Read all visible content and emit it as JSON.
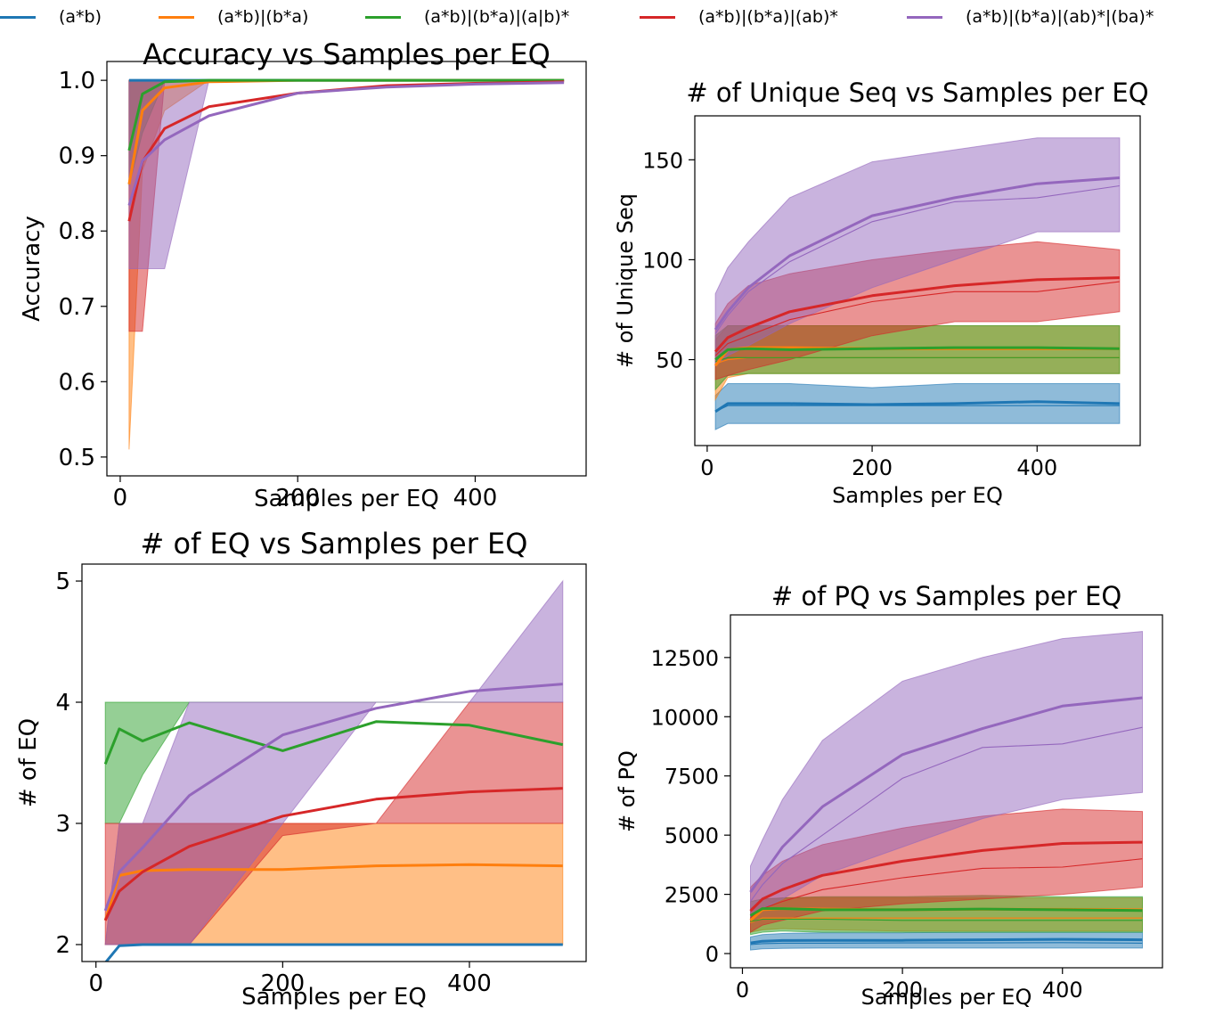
{
  "legend": [
    {
      "label": "(a*b)",
      "color": "#1f77b4"
    },
    {
      "label": "(a*b)|(b*a)",
      "color": "#ff7f0e"
    },
    {
      "label": "(a*b)|(b*a)|(a|b)*",
      "color": "#2ca02c"
    },
    {
      "label": "(a*b)|(b*a)|(ab)*",
      "color": "#d62728"
    },
    {
      "label": "(a*b)|(b*a)|(ab)*|(ba)*",
      "color": "#9467bd"
    }
  ],
  "chart_data": [
    {
      "id": "accuracy",
      "type": "line",
      "title": "Accuracy vs Samples per EQ",
      "xlabel": "Samples per EQ",
      "ylabel": "Accuracy",
      "xlim": [
        -15,
        525
      ],
      "ylim": [
        0.475,
        1.025
      ],
      "xticks": [
        0,
        200,
        400
      ],
      "yticks": [
        0.5,
        0.6,
        0.7,
        0.8,
        0.9,
        1.0
      ],
      "ytick_labels": [
        "0.5",
        "0.6",
        "0.7",
        "0.8",
        "0.9",
        "1.0"
      ],
      "x": [
        10,
        25,
        50,
        100,
        200,
        300,
        400,
        500
      ],
      "series": [
        {
          "name": "(a*b)",
          "mean": [
            1,
            1,
            1,
            1,
            1,
            1,
            1,
            1
          ],
          "lower": [
            1,
            1,
            1,
            1,
            1,
            1,
            1,
            1
          ],
          "upper": [
            1,
            1,
            1,
            1,
            1,
            1,
            1,
            1
          ]
        },
        {
          "name": "(a*b)|(b*a)",
          "mean": [
            0.862,
            0.96,
            0.99,
            0.998,
            1,
            1,
            1,
            1
          ],
          "lower": [
            0.51,
            0.88,
            0.96,
            1,
            1,
            1,
            1,
            1
          ],
          "upper": [
            1,
            1,
            1,
            1,
            1,
            1,
            1,
            1
          ]
        },
        {
          "name": "(a*b)|(b*a)|(a|b)*",
          "mean": [
            0.907,
            0.982,
            0.998,
            1,
            1,
            1,
            1,
            1
          ],
          "lower": [
            0.86,
            0.93,
            1,
            1,
            1,
            1,
            1,
            1
          ],
          "upper": [
            1,
            1,
            1,
            1,
            1,
            1,
            1,
            1
          ]
        },
        {
          "name": "(a*b)|(b*a)|(ab)*",
          "mean": [
            0.813,
            0.892,
            0.936,
            0.965,
            0.983,
            0.993,
            0.996,
            0.998
          ],
          "lower": [
            0.667,
            0.667,
            1,
            1,
            1,
            1,
            1,
            1
          ],
          "upper": [
            1,
            1,
            1,
            1,
            1,
            1,
            1,
            1
          ]
        },
        {
          "name": "(a*b)|(b*a)|(ab)*|(ba)*",
          "mean": [
            0.834,
            0.893,
            0.921,
            0.953,
            0.983,
            0.991,
            0.995,
            0.997
          ],
          "lower": [
            0.75,
            0.75,
            0.75,
            1,
            1,
            1,
            1,
            1
          ],
          "upper": [
            1,
            1,
            1,
            1,
            1,
            1,
            1,
            1
          ]
        }
      ]
    },
    {
      "id": "unique_seq",
      "type": "line",
      "title": "# of Unique Seq vs Samples per EQ",
      "xlabel": "Samples per EQ",
      "ylabel": "# of Unique Seq",
      "xlim": [
        -15,
        525
      ],
      "ylim": [
        7,
        172
      ],
      "xticks": [
        0,
        200,
        400
      ],
      "yticks": [
        50,
        100,
        150
      ],
      "ytick_labels": [
        "50",
        "100",
        "150"
      ],
      "x": [
        10,
        25,
        50,
        100,
        200,
        300,
        400,
        500
      ],
      "series": [
        {
          "name": "(a*b)",
          "mean": [
            24,
            28,
            28,
            28,
            27.5,
            28,
            29,
            28
          ],
          "median": [
            24,
            27,
            27,
            27,
            27,
            27,
            27,
            27
          ],
          "lower": [
            15,
            18,
            18,
            18,
            18,
            18,
            18,
            18
          ],
          "upper": [
            32,
            38,
            38,
            38,
            36,
            38,
            38,
            38
          ]
        },
        {
          "name": "(a*b)|(b*a)",
          "mean": [
            47,
            55,
            56,
            56,
            55.5,
            55.5,
            55.5,
            55.5
          ],
          "median": [
            48,
            50,
            51,
            51,
            51,
            51,
            51,
            51
          ],
          "lower": [
            30,
            41,
            43,
            43,
            43,
            43,
            43,
            43
          ],
          "upper": [
            60,
            67,
            67,
            67,
            67,
            67,
            67,
            67
          ]
        },
        {
          "name": "(a*b)|(b*a)|(a|b)*",
          "mean": [
            50,
            55,
            55.5,
            55,
            55.5,
            56,
            56,
            55.5
          ],
          "median": [
            49,
            51,
            51,
            51,
            51,
            51,
            51,
            51
          ],
          "lower": [
            35,
            42,
            43,
            43,
            43,
            43,
            43,
            43
          ],
          "upper": [
            62,
            67,
            67,
            67,
            67,
            67,
            67,
            67
          ]
        },
        {
          "name": "(a*b)|(b*a)|(ab)*",
          "mean": [
            54,
            61,
            66,
            74,
            82,
            87,
            90,
            91
          ],
          "median": [
            52,
            58,
            62,
            70,
            79,
            84,
            84,
            89
          ],
          "lower": [
            40,
            42,
            45,
            50,
            62,
            69,
            69,
            74
          ],
          "upper": [
            68,
            78,
            87,
            93,
            100,
            105,
            109,
            105
          ]
        },
        {
          "name": "(a*b)|(b*a)|(ab)*|(ba)*",
          "mean": [
            65,
            74,
            86,
            102,
            122,
            131,
            138,
            141
          ],
          "median": [
            63,
            72,
            84,
            99,
            119,
            129,
            131,
            137
          ],
          "lower": [
            47,
            52,
            57,
            68,
            86,
            100,
            114,
            114
          ],
          "upper": [
            83,
            96,
            109,
            131,
            149,
            155,
            161,
            161
          ]
        }
      ]
    },
    {
      "id": "eq",
      "type": "line",
      "title": "# of EQ vs Samples per EQ",
      "xlabel": "Samples per EQ",
      "ylabel": "# of EQ",
      "xlim": [
        -15,
        525
      ],
      "ylim": [
        1.86,
        5.14
      ],
      "xticks": [
        0,
        200,
        400
      ],
      "yticks": [
        2,
        3,
        4,
        5
      ],
      "ytick_labels": [
        "2",
        "3",
        "4",
        "5"
      ],
      "x": [
        10,
        25,
        50,
        100,
        200,
        300,
        400,
        500
      ],
      "series": [
        {
          "name": "(a*b)",
          "mean": [
            1.85,
            1.99,
            2,
            2,
            2,
            2,
            2,
            2
          ],
          "lower": [
            2,
            2,
            2,
            2,
            2,
            2,
            2,
            2
          ],
          "upper": [
            2,
            2,
            2,
            2,
            2,
            2,
            2,
            2
          ]
        },
        {
          "name": "(a*b)|(b*a)",
          "mean": [
            2.2,
            2.57,
            2.61,
            2.62,
            2.62,
            2.65,
            2.66,
            2.65
          ],
          "lower": [
            2,
            2,
            2,
            2,
            2,
            2,
            2,
            2
          ],
          "upper": [
            2,
            3,
            3,
            3,
            3,
            3,
            3,
            3
          ]
        },
        {
          "name": "(a*b)|(b*a)|(a|b)*",
          "mean": [
            3.49,
            3.78,
            3.68,
            3.83,
            3.6,
            3.84,
            3.81,
            3.65
          ],
          "lower": [
            3,
            3,
            3.4,
            4,
            4,
            4,
            4,
            4
          ],
          "upper": [
            4,
            4,
            4,
            4,
            4,
            4,
            4,
            4
          ]
        },
        {
          "name": "(a*b)|(b*a)|(ab)*",
          "mean": [
            2.2,
            2.44,
            2.6,
            2.81,
            3.06,
            3.2,
            3.26,
            3.29
          ],
          "lower": [
            2,
            2,
            2,
            2,
            2.9,
            3,
            3,
            3
          ],
          "upper": [
            3,
            3,
            3,
            3,
            3,
            3,
            4,
            4
          ]
        },
        {
          "name": "(a*b)|(b*a)|(ab)*|(ba)*",
          "mean": [
            2.28,
            2.6,
            2.8,
            3.23,
            3.73,
            3.95,
            4.09,
            4.15
          ],
          "lower": [
            2,
            2,
            2,
            2,
            3,
            4,
            4,
            4
          ],
          "upper": [
            2,
            3,
            3,
            4,
            4,
            4,
            4,
            5
          ]
        }
      ]
    },
    {
      "id": "pq",
      "type": "line",
      "title": "# of PQ vs Samples per EQ",
      "xlabel": "Samples per EQ",
      "ylabel": "# of PQ",
      "xlim": [
        -15,
        525
      ],
      "ylim": [
        -600,
        14300
      ],
      "xticks": [
        0,
        200,
        400
      ],
      "yticks": [
        0,
        2500,
        5000,
        7500,
        10000,
        12500
      ],
      "ytick_labels": [
        "0",
        "2500",
        "5000",
        "7500",
        "10000",
        "12500"
      ],
      "x": [
        10,
        25,
        50,
        100,
        200,
        300,
        400,
        500
      ],
      "series": [
        {
          "name": "(a*b)",
          "mean": [
            450,
            520,
            550,
            560,
            560,
            580,
            600,
            580
          ],
          "median": [
            380,
            420,
            440,
            440,
            450,
            450,
            460,
            440
          ],
          "lower": [
            150,
            200,
            220,
            230,
            230,
            230,
            230,
            230
          ],
          "upper": [
            700,
            800,
            850,
            880,
            880,
            900,
            900,
            900
          ]
        },
        {
          "name": "(a*b)|(b*a)",
          "mean": [
            1400,
            1850,
            1900,
            1880,
            1850,
            1870,
            1870,
            1850
          ],
          "median": [
            1300,
            1500,
            1500,
            1500,
            1500,
            1500,
            1500,
            1500
          ],
          "lower": [
            900,
            1000,
            1050,
            1000,
            950,
            950,
            950,
            950
          ],
          "upper": [
            1900,
            2300,
            2350,
            2350,
            2350,
            2350,
            2350,
            2350
          ]
        },
        {
          "name": "(a*b)|(b*a)|(a|b)*",
          "mean": [
            1600,
            1900,
            1900,
            1850,
            1850,
            1880,
            1850,
            1820
          ],
          "median": [
            1350,
            1450,
            1450,
            1450,
            1400,
            1400,
            1400,
            1400
          ],
          "lower": [
            800,
            900,
            950,
            900,
            900,
            900,
            900,
            900
          ],
          "upper": [
            2200,
            2300,
            2350,
            2400,
            2400,
            2450,
            2400,
            2400
          ]
        },
        {
          "name": "(a*b)|(b*a)|(ab)*",
          "mean": [
            1800,
            2300,
            2700,
            3300,
            3900,
            4350,
            4650,
            4700
          ],
          "median": [
            1500,
            1900,
            2200,
            2700,
            3200,
            3600,
            3650,
            4000
          ],
          "lower": [
            900,
            1200,
            1400,
            1800,
            2100,
            2300,
            2500,
            2800
          ],
          "upper": [
            2800,
            3300,
            3900,
            4600,
            5300,
            5800,
            6100,
            6000
          ]
        },
        {
          "name": "(a*b)|(b*a)|(ab)*|(ba)*",
          "mean": [
            2600,
            3300,
            4500,
            6200,
            8400,
            9500,
            10450,
            10800
          ],
          "median": [
            2200,
            2900,
            3800,
            5000,
            7400,
            8700,
            8850,
            9550
          ],
          "lower": [
            1500,
            1900,
            2300,
            3300,
            4500,
            5700,
            6500,
            6800
          ],
          "upper": [
            3700,
            4800,
            6500,
            9000,
            11500,
            12500,
            13300,
            13600
          ]
        }
      ]
    }
  ]
}
